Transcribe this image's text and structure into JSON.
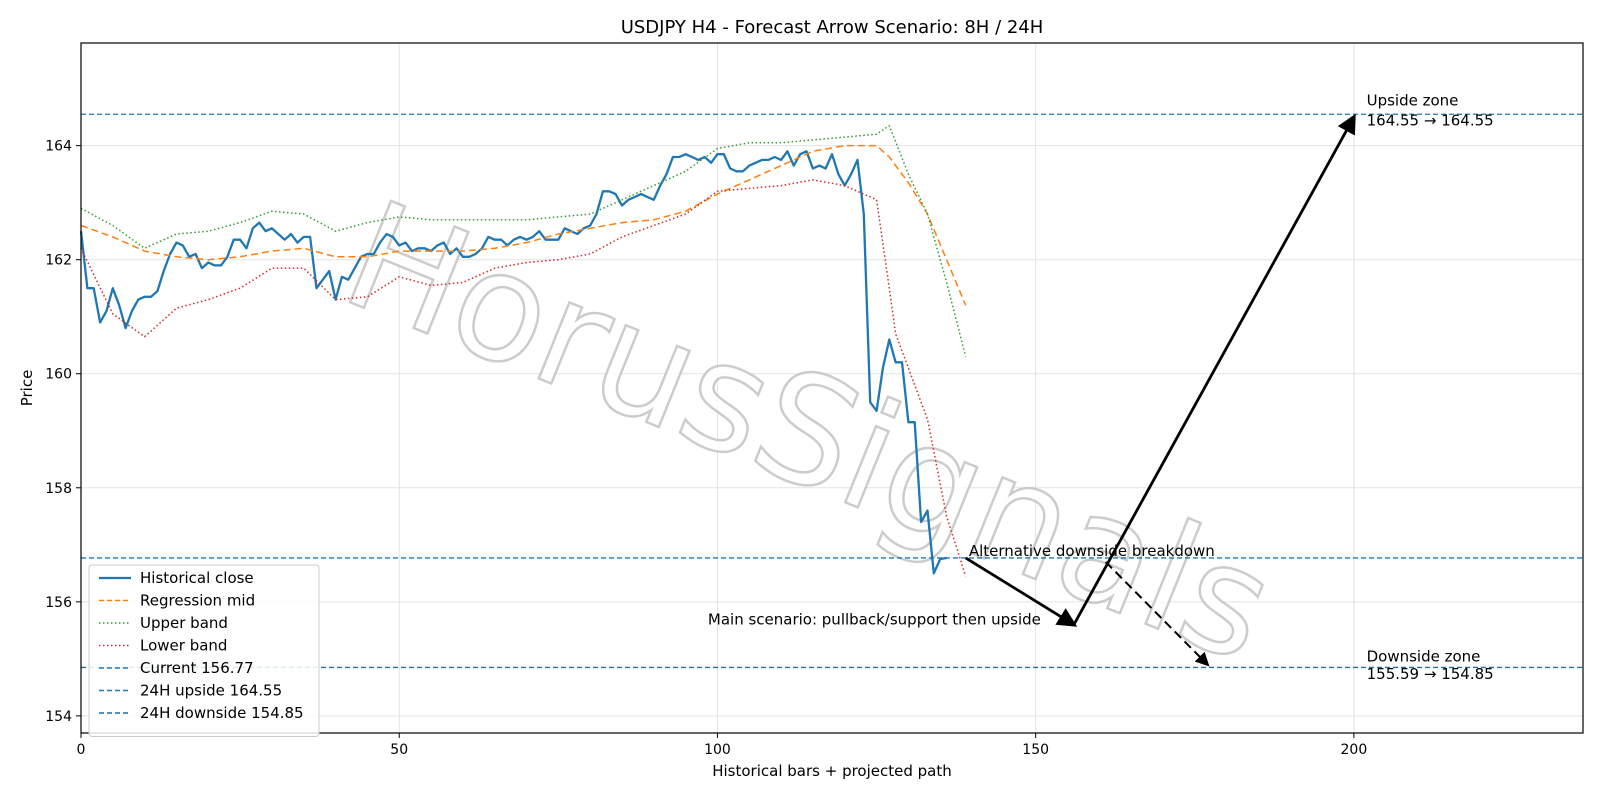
{
  "chart_data": {
    "type": "line",
    "title": "USDJPY H4 - Forecast Arrow Scenario: 8H / 24H",
    "xlabel": "Historical bars + projected path",
    "ylabel": "Price",
    "xlim": [
      0,
      236
    ],
    "ylim": [
      153.7,
      165.8
    ],
    "xticks": [
      0,
      50,
      100,
      150,
      200
    ],
    "yticks": [
      154,
      156,
      158,
      160,
      162,
      164
    ],
    "grid": true,
    "legend_position": "lower-left",
    "series": [
      {
        "name": "Historical close",
        "color": "#1f77b4",
        "style": "solid",
        "y": [
          162.5,
          161.5,
          161.5,
          160.9,
          161.1,
          161.5,
          161.2,
          160.8,
          161.1,
          161.3,
          161.35,
          161.35,
          161.45,
          161.8,
          162.1,
          162.3,
          162.25,
          162.05,
          162.1,
          161.85,
          161.95,
          161.9,
          161.9,
          162.05,
          162.35,
          162.35,
          162.2,
          162.55,
          162.65,
          162.5,
          162.55,
          162.45,
          162.35,
          162.45,
          162.3,
          162.4,
          162.4,
          161.5,
          161.65,
          161.8,
          161.3,
          161.7,
          161.65,
          161.85,
          162.05,
          162.1,
          162.1,
          162.3,
          162.45,
          162.4,
          162.25,
          162.3,
          162.15,
          162.2,
          162.2,
          162.15,
          162.25,
          162.3,
          162.1,
          162.2,
          162.05,
          162.05,
          162.1,
          162.2,
          162.4,
          162.35,
          162.35,
          162.25,
          162.35,
          162.4,
          162.35,
          162.4,
          162.5,
          162.35,
          162.35,
          162.35,
          162.55,
          162.5,
          162.45,
          162.55,
          162.6,
          162.8,
          163.2,
          163.2,
          163.15,
          162.95,
          163.05,
          163.1,
          163.15,
          163.1,
          163.05,
          163.3,
          163.5,
          163.8,
          163.8,
          163.85,
          163.8,
          163.75,
          163.8,
          163.7,
          163.85,
          163.85,
          163.6,
          163.55,
          163.55,
          163.65,
          163.7,
          163.75,
          163.75,
          163.8,
          163.75,
          163.9,
          163.65,
          163.85,
          163.9,
          163.6,
          163.65,
          163.6,
          163.85,
          163.5,
          163.3,
          163.5,
          163.75,
          162.8,
          159.5,
          159.35,
          160.1,
          160.6,
          160.2,
          160.2,
          159.15,
          159.15,
          157.4,
          157.6,
          156.5,
          156.75,
          156.77
        ]
      },
      {
        "name": "Regression mid",
        "color": "#ff7f0e",
        "style": "dashed",
        "x": [
          0,
          5,
          10,
          15,
          20,
          25,
          30,
          35,
          40,
          45,
          50,
          55,
          60,
          65,
          70,
          75,
          80,
          85,
          90,
          95,
          100,
          105,
          110,
          115,
          120,
          125,
          127,
          130,
          133,
          136,
          139
        ],
        "y": [
          162.6,
          162.4,
          162.15,
          162.05,
          162.0,
          162.05,
          162.15,
          162.2,
          162.05,
          162.05,
          162.15,
          162.15,
          162.15,
          162.2,
          162.3,
          162.45,
          162.55,
          162.65,
          162.7,
          162.85,
          163.15,
          163.4,
          163.65,
          163.9,
          164.0,
          164.0,
          163.8,
          163.35,
          162.8,
          162.0,
          161.2
        ]
      },
      {
        "name": "Upper band",
        "color": "#2ca02c",
        "style": "dotted",
        "x": [
          0,
          5,
          10,
          15,
          20,
          25,
          30,
          35,
          40,
          45,
          50,
          55,
          60,
          65,
          70,
          75,
          80,
          85,
          90,
          95,
          100,
          105,
          110,
          115,
          120,
          125,
          127,
          130,
          133,
          136,
          139
        ],
        "y": [
          162.9,
          162.6,
          162.2,
          162.45,
          162.5,
          162.65,
          162.85,
          162.8,
          162.5,
          162.65,
          162.75,
          162.7,
          162.7,
          162.7,
          162.7,
          162.75,
          162.8,
          163.05,
          163.3,
          163.55,
          163.95,
          164.05,
          164.05,
          164.1,
          164.15,
          164.2,
          164.35,
          163.5,
          162.8,
          161.6,
          160.3
        ]
      },
      {
        "name": "Lower band",
        "color": "#d62728",
        "style": "dotted",
        "x": [
          0,
          5,
          10,
          15,
          20,
          25,
          30,
          35,
          40,
          45,
          50,
          55,
          60,
          65,
          70,
          75,
          80,
          85,
          90,
          95,
          100,
          105,
          110,
          115,
          120,
          125,
          127,
          128,
          130,
          133,
          136,
          139
        ],
        "y": [
          162.2,
          161.05,
          160.65,
          161.15,
          161.3,
          161.5,
          161.85,
          161.85,
          161.3,
          161.35,
          161.7,
          161.55,
          161.6,
          161.85,
          161.95,
          162.0,
          162.1,
          162.4,
          162.6,
          162.8,
          163.2,
          163.25,
          163.3,
          163.4,
          163.3,
          163.05,
          161.5,
          160.7,
          160.1,
          159.2,
          157.5,
          156.45
        ]
      }
    ],
    "reference_lines": [
      {
        "name": "Current 156.77",
        "y": 156.77,
        "color": "#1f77b4"
      },
      {
        "name": "24H upside 164.55",
        "y": 164.55,
        "color": "#1f77b4"
      },
      {
        "name": "24H downside 154.85",
        "y": 154.85,
        "color": "#1f6f9f"
      }
    ],
    "arrows": [
      {
        "from": [
          139,
          156.77
        ],
        "to": [
          156,
          155.6
        ],
        "style": "solid"
      },
      {
        "from": [
          156,
          155.6
        ],
        "to": [
          200,
          164.5
        ],
        "style": "solid"
      },
      {
        "from": [
          161,
          156.7
        ],
        "to": [
          177,
          154.9
        ],
        "style": "dashed"
      }
    ],
    "annotations": [
      {
        "text": "Main scenario: pullback/support then upside",
        "x": 98.5,
        "y": 155.6
      },
      {
        "text": "Alternative downside breakdown",
        "x": 139.5,
        "y": 156.8
      },
      {
        "text": "Upside zone",
        "x": 202,
        "y": 164.7
      },
      {
        "text": "164.55 → 164.55",
        "x": 202,
        "y": 164.35
      },
      {
        "text": "Downside zone",
        "x": 202,
        "y": 154.95
      },
      {
        "text": "155.59 → 154.85",
        "x": 202,
        "y": 154.65
      }
    ]
  },
  "watermark": "HorusSignals"
}
